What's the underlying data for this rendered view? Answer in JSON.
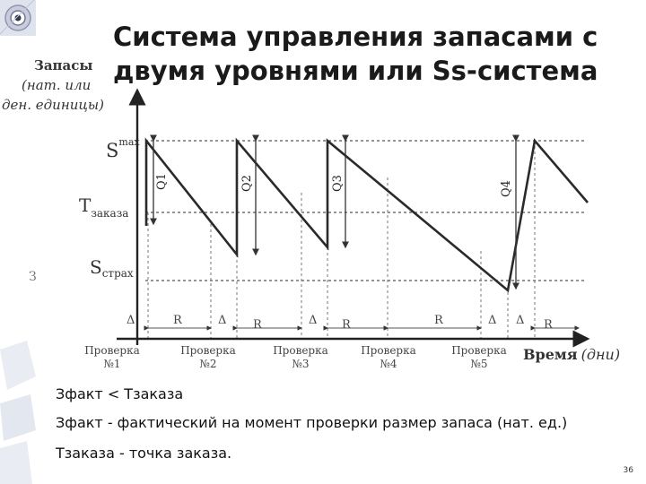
{
  "title": {
    "line1": "Система управления запасами с",
    "line2": "двумя уровнями или Ss-система"
  },
  "diagram": {
    "y_axis_label": [
      "Запасы",
      "(нат. или",
      "ден. единицы)"
    ],
    "x_axis_label": "Время",
    "x_axis_unit": "(дни)",
    "level_smax": "S",
    "level_smax_sup": "max",
    "level_treorder": "T",
    "level_treorder_sub": "заказа",
    "level_ssafety": "S",
    "level_ssafety_sub": "страх",
    "side_label": "З",
    "order_labels": [
      "Q1",
      "Q2",
      "Q3",
      "Q4"
    ],
    "delta": "Δ",
    "interval": "R",
    "checks": [
      {
        "line1": "Проверка",
        "line2": "№1"
      },
      {
        "line1": "Проверка",
        "line2": "№2"
      },
      {
        "line1": "Проверка",
        "line2": "№3"
      },
      {
        "line1": "Проверка",
        "line2": "№4"
      },
      {
        "line1": "Проверка",
        "line2": "№5"
      }
    ]
  },
  "notes": [
    "Зфакт < Тзаказа",
    "Зфакт - фактический на момент проверки размер запаса (нат. ед.)",
    "Тзаказа - точка заказа."
  ],
  "page_number": "36"
}
